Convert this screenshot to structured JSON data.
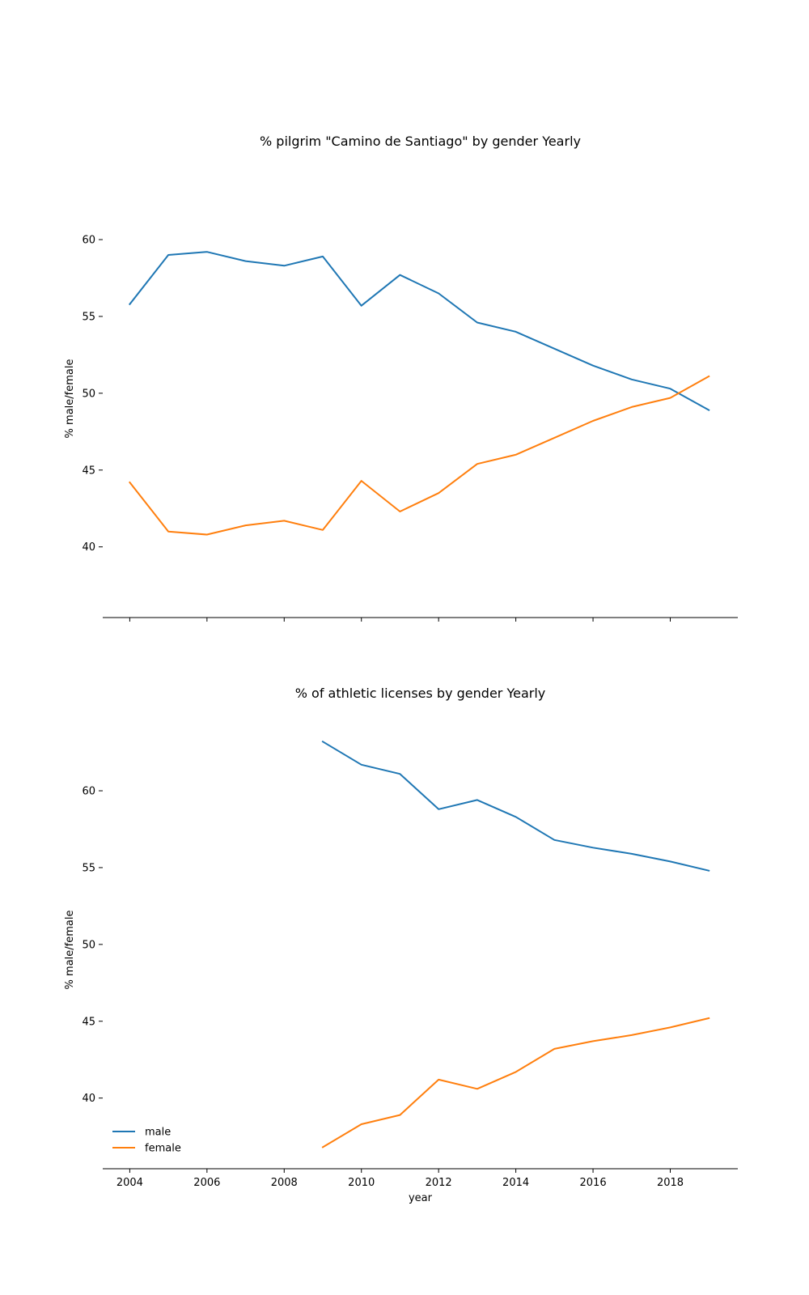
{
  "figure": {
    "background": "#ffffff",
    "series_colors": {
      "male": "#1f77b4",
      "female": "#ff7f0e"
    }
  },
  "chart_data": [
    {
      "type": "line",
      "title": "% pilgrim \"Camino de Santiago\" by gender Yearly",
      "xlabel": "",
      "ylabel": "% male/female",
      "xlim": [
        2003.3,
        2019.75
      ],
      "ylim": [
        35.4,
        63.9
      ],
      "yticks": [
        40,
        45,
        50,
        55,
        60
      ],
      "xticks": [
        2004,
        2006,
        2008,
        2010,
        2012,
        2014,
        2016,
        2018
      ],
      "show_xtick_labels": false,
      "grid": false,
      "legend": false,
      "x": [
        2004,
        2005,
        2006,
        2007,
        2008,
        2009,
        2010,
        2011,
        2012,
        2013,
        2014,
        2015,
        2016,
        2017,
        2018,
        2019
      ],
      "series": [
        {
          "name": "male",
          "color": "#1f77b4",
          "values": [
            55.8,
            59.0,
            59.2,
            58.6,
            58.3,
            58.9,
            55.7,
            57.7,
            56.5,
            54.6,
            54.0,
            52.9,
            51.8,
            50.9,
            50.3,
            48.9
          ]
        },
        {
          "name": "female",
          "color": "#ff7f0e",
          "values": [
            44.2,
            41.0,
            40.8,
            41.4,
            41.7,
            41.1,
            44.3,
            42.3,
            43.5,
            45.4,
            46.0,
            47.1,
            48.2,
            49.1,
            49.7,
            51.1
          ]
        }
      ]
    },
    {
      "type": "line",
      "title": "% of athletic licenses by gender Yearly",
      "xlabel": "year",
      "ylabel": "% male/female",
      "xlim": [
        2003.3,
        2019.75
      ],
      "ylim": [
        35.4,
        63.9
      ],
      "yticks": [
        40,
        45,
        50,
        55,
        60
      ],
      "xticks": [
        2004,
        2006,
        2008,
        2010,
        2012,
        2014,
        2016,
        2018
      ],
      "show_xtick_labels": true,
      "grid": false,
      "legend": "lower-left",
      "x": [
        2009,
        2010,
        2011,
        2012,
        2013,
        2014,
        2015,
        2016,
        2017,
        2018,
        2019
      ],
      "series": [
        {
          "name": "male",
          "color": "#1f77b4",
          "values": [
            63.2,
            61.7,
            61.1,
            58.8,
            59.4,
            58.3,
            56.8,
            56.3,
            55.9,
            55.4,
            54.8
          ]
        },
        {
          "name": "female",
          "color": "#ff7f0e",
          "values": [
            36.8,
            38.3,
            38.9,
            41.2,
            40.6,
            41.7,
            43.2,
            43.7,
            44.1,
            44.6,
            45.2
          ]
        }
      ]
    }
  ]
}
